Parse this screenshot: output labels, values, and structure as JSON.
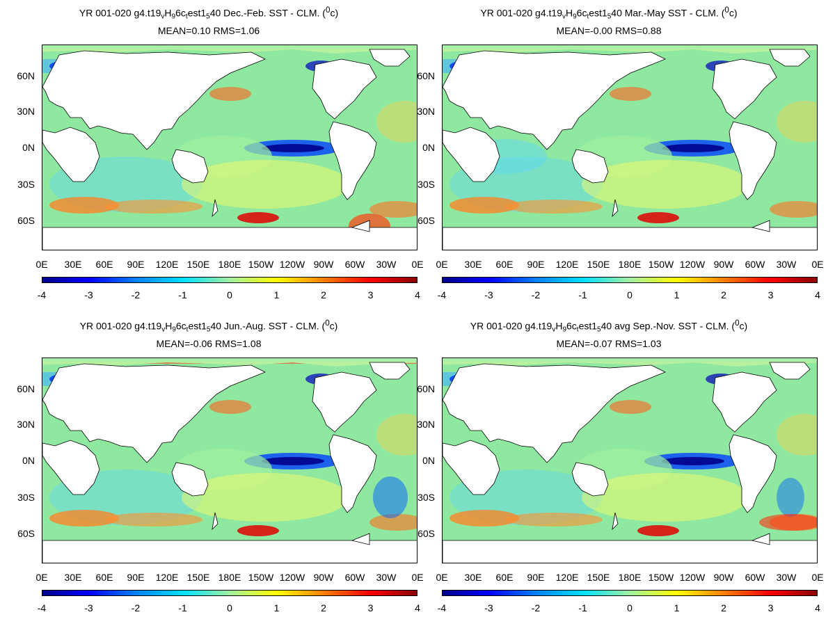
{
  "panels": [
    {
      "title_pre": "YR 001-020 g4.t19",
      "sub_v": "v",
      "title_mid1": "H",
      "sub_9": "9",
      "title_mid2": "6c",
      "sub_t": "t",
      "title_mid3": "est1",
      "sub_5": "5",
      "title_post": "40  Dec.-Feb. SST - CLM. (",
      "sup": "0",
      "title_end": "c)",
      "stats": "MEAN=0.10   RMS=1.06"
    },
    {
      "title_pre": "YR 001-020 g4.t19",
      "sub_v": "v",
      "title_mid1": "H",
      "sub_9": "9",
      "title_mid2": "6c",
      "sub_t": "t",
      "title_mid3": "est1",
      "sub_5": "5",
      "title_post": "40 Mar.-May SST - CLM. (",
      "sup": "0",
      "title_end": "c)",
      "stats": "MEAN=-0.00   RMS=0.88"
    },
    {
      "title_pre": "YR 001-020 g4.t19",
      "sub_v": "v",
      "title_mid1": "H",
      "sub_9": "9",
      "title_mid2": "6c",
      "sub_t": "t",
      "title_mid3": "est1",
      "sub_5": "5",
      "title_post": "40 Jun.-Aug. SST - CLM. (",
      "sup": "0",
      "title_end": "c)",
      "stats": "MEAN=-0.06   RMS=1.08"
    },
    {
      "title_pre": "YR 001-020 g4.t19",
      "sub_v": "v",
      "title_mid1": "H",
      "sub_9": "9",
      "title_mid2": "6c",
      "sub_t": "t",
      "title_mid3": "est1",
      "sub_5": "5",
      "title_post": "40 avg Sep.-Nov. SST - CLM. (",
      "sup": "0",
      "title_end": "c)",
      "stats": "MEAN=-0.07   RMS=1.03"
    }
  ],
  "axes": {
    "lat_labels": [
      "60N",
      "30N",
      "0N",
      "30S",
      "60S"
    ],
    "lon_labels": [
      "0E",
      "30E",
      "60E",
      "90E",
      "120E",
      "150E",
      "180E",
      "150W",
      "120W",
      "90W",
      "60W",
      "30W",
      "0E"
    ]
  },
  "colorbar": {
    "ticks": [
      "-4",
      "-3",
      "-2",
      "-1",
      "0",
      "1",
      "2",
      "3",
      "4"
    ],
    "colors": [
      "#00008b",
      "#0000ff",
      "#0080ff",
      "#00e0ff",
      "#a0f0a0",
      "#ffff00",
      "#ff8000",
      "#ff0000",
      "#8b0000"
    ]
  }
}
